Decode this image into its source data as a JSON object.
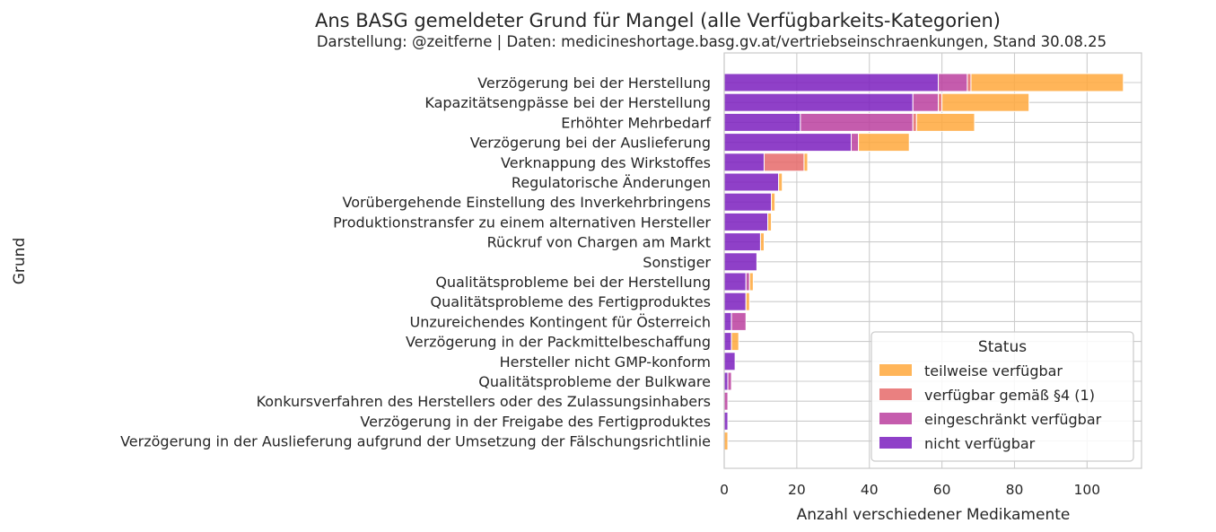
{
  "chart_data": {
    "type": "bar",
    "orientation": "horizontal",
    "stacked": true,
    "title": "Ans BASG gemeldeter Grund für Mangel (alle Verfügbarkeits-Kategorien)",
    "subtitle": "Darstellung: @zeitferne | Daten: medicineshortage.basg.gv.at/vertriebseinschraenkungen, Stand 30.08.25",
    "xlabel": "Anzahl verschiedener Medikamente",
    "ylabel": "Grund",
    "xlim": [
      0,
      115
    ],
    "xticks": [
      0,
      20,
      40,
      60,
      80,
      100
    ],
    "grid": true,
    "legend": {
      "title": "Status",
      "placement": "lower-right"
    },
    "categories": [
      "Verzögerung bei der Herstellung",
      "Kapazitätsengpässe bei der Herstellung",
      "Erhöhter Mehrbedarf",
      "Verzögerung bei der Auslieferung",
      "Verknappung des Wirkstoffes",
      "Regulatorische Änderungen",
      "Vorübergehende Einstellung des Inverkehrbringens",
      "Produktionstransfer zu einem alternativen Hersteller",
      "Rückruf von Chargen am Markt",
      "Sonstiger",
      "Qualitätsprobleme bei der Herstellung",
      "Qualitätsprobleme des Fertigproduktes",
      "Unzureichendes Kontingent für Österreich",
      "Verzögerung in der Packmittelbeschaffung",
      "Hersteller nicht GMP-konform",
      "Qualitätsprobleme der Bulkware",
      "Konkursverfahren des Herstellers oder des Zulassungsinhabers",
      "Verzögerung in der Freigabe des Fertigproduktes",
      "Verzögerung in der Auslieferung aufgrund der Umsetzung der Fälschungsrichtlinie"
    ],
    "series": [
      {
        "name": "nicht verfügbar",
        "color": "#7b1fbe",
        "values": [
          59,
          52,
          21,
          35,
          11,
          15,
          13,
          12,
          10,
          9,
          6,
          6,
          2,
          2,
          3,
          1,
          0,
          1,
          0
        ]
      },
      {
        "name": "eingeschränkt verfügbar",
        "color": "#bb3f9f",
        "values": [
          8,
          7,
          31,
          2,
          0,
          0,
          0,
          0,
          0,
          0,
          1,
          0,
          4,
          0,
          0,
          1,
          1,
          0,
          0
        ]
      },
      {
        "name": "verfügbar gemäß §4 (1)",
        "color": "#e66a6a",
        "values": [
          1,
          1,
          1,
          0,
          11,
          0,
          0,
          0,
          0,
          0,
          0,
          0,
          0,
          0,
          0,
          0,
          0,
          0,
          0
        ]
      },
      {
        "name": "teilweise verfügbar",
        "color": "#ffa83c",
        "values": [
          42,
          24,
          16,
          14,
          1,
          1,
          1,
          1,
          1,
          0,
          1,
          1,
          0,
          2,
          0,
          0,
          0,
          0,
          1
        ]
      }
    ],
    "legend_order": [
      "teilweise verfügbar",
      "verfügbar gemäß §4 (1)",
      "eingeschränkt verfügbar",
      "nicht verfügbar"
    ]
  }
}
